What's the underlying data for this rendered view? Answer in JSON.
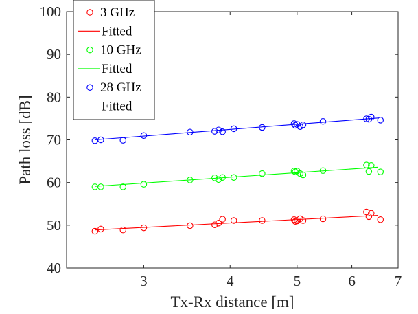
{
  "chart_data": {
    "type": "scatter",
    "xlabel": "Tx-Rx distance [m]",
    "ylabel": "Path loss [dB]",
    "x_scale": "log",
    "xlim": [
      2.32,
      7.0
    ],
    "ylim": [
      40,
      100
    ],
    "x_ticks": [
      3,
      4,
      5,
      6,
      7
    ],
    "y_ticks": [
      40,
      50,
      60,
      70,
      80,
      90,
      100
    ],
    "grid": false,
    "legend_position": "top-left",
    "series": [
      {
        "name": "3 GHz",
        "fit_name": "Fitted",
        "color": "#ff0000",
        "x": [
          2.55,
          2.6,
          2.8,
          3.0,
          3.5,
          3.8,
          3.85,
          3.9,
          4.05,
          4.45,
          4.95,
          4.97,
          5.0,
          5.05,
          5.1,
          5.45,
          6.3,
          6.35,
          6.4,
          6.6
        ],
        "y": [
          48.6,
          49.1,
          48.9,
          49.4,
          49.9,
          50.1,
          50.5,
          51.4,
          51.1,
          51.1,
          51.3,
          50.9,
          51.0,
          51.5,
          51.1,
          51.5,
          53.1,
          52.0,
          52.8,
          51.3
        ],
        "fit": [
          [
            2.55,
            48.9
          ],
          [
            6.55,
            52.3
          ]
        ]
      },
      {
        "name": "10 GHz",
        "fit_name": "Fitted",
        "color": "#00ff00",
        "x": [
          2.55,
          2.6,
          2.8,
          3.0,
          3.5,
          3.8,
          3.85,
          3.9,
          4.05,
          4.45,
          4.95,
          4.97,
          5.0,
          5.05,
          5.1,
          5.45,
          6.3,
          6.35,
          6.4,
          6.6
        ],
        "y": [
          59.0,
          59.0,
          59.0,
          59.6,
          60.6,
          61.1,
          60.7,
          61.2,
          61.2,
          62.1,
          62.7,
          62.5,
          62.7,
          62.1,
          61.8,
          62.8,
          64.1,
          62.6,
          64.0,
          62.5
        ],
        "fit": [
          [
            2.55,
            59.1
          ],
          [
            6.55,
            63.6
          ]
        ]
      },
      {
        "name": "28 GHz",
        "fit_name": "Fitted",
        "color": "#0000ff",
        "x": [
          2.55,
          2.6,
          2.8,
          3.0,
          3.5,
          3.8,
          3.85,
          3.9,
          4.05,
          4.45,
          4.95,
          4.97,
          5.0,
          5.05,
          5.1,
          5.45,
          6.3,
          6.35,
          6.4,
          6.6
        ],
        "y": [
          69.8,
          70.0,
          69.9,
          71.0,
          71.8,
          72.0,
          72.3,
          71.9,
          72.6,
          72.9,
          73.8,
          73.4,
          73.6,
          73.1,
          73.5,
          74.3,
          74.9,
          74.8,
          75.3,
          74.6
        ],
        "fit": [
          [
            2.55,
            70.0
          ],
          [
            6.55,
            75.1
          ]
        ]
      }
    ]
  }
}
